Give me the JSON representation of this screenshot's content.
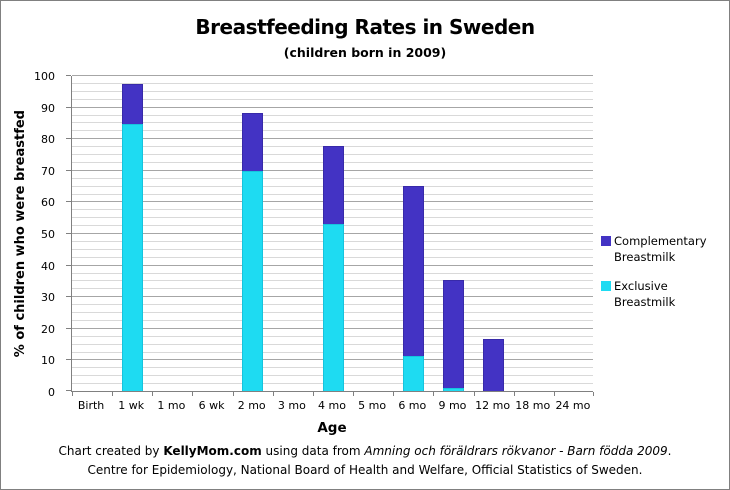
{
  "chart_data": {
    "type": "bar",
    "stacked": true,
    "title": "Breastfeeding Rates in Sweden",
    "subtitle": "(children born in 2009)",
    "xlabel": "Age",
    "ylabel": "% of children who were breastfed",
    "ylim": [
      0,
      100
    ],
    "y_major_step": 10,
    "y_minor_step": 2.5,
    "grid": "horizontal major and minor gridlines",
    "legend_position": "right",
    "categories": [
      "Birth",
      "1 wk",
      "1 mo",
      "6 wk",
      "2 mo",
      "3 mo",
      "4 mo",
      "5 mo",
      "6 mo",
      "9 mo",
      "12 mo",
      "18 mo",
      "24 mo"
    ],
    "series": [
      {
        "name": "Exclusive Breastmilk",
        "color": "#1edbf2",
        "border_color": "#16c4dd",
        "values": [
          0,
          84.5,
          0,
          0,
          69.5,
          0,
          53,
          0,
          11,
          1,
          0,
          0,
          0
        ]
      },
      {
        "name": "Complementary Breastmilk",
        "color": "#4333c4",
        "border_color": "#382aa9",
        "values": [
          0,
          12.5,
          0,
          0,
          18.5,
          0,
          24.5,
          0,
          54,
          34,
          16.5,
          0,
          0
        ]
      }
    ],
    "stacked_totals": [
      0,
      97,
      0,
      0,
      88,
      0,
      77.5,
      0,
      65,
      35,
      16.5,
      0,
      0
    ],
    "legend": [
      {
        "label": "Complementary Breastmilk",
        "color": "#4333c4"
      },
      {
        "label": "Exclusive Breastmilk",
        "color": "#1edbf2"
      }
    ],
    "colors": {
      "axis": "#808080",
      "major_gridline": "#a6a6a6",
      "minor_gridline": "#d9d9d9"
    }
  },
  "footer": {
    "line1_prefix": "Chart created by ",
    "line1_brand": "KellyMom.com",
    "line1_middle": " using data from ",
    "line1_source": "Amning och föräldrars rökvanor - Barn födda 2009",
    "line1_suffix": ".",
    "line2": "Centre for Epidemiology, National Board of Health and Welfare, Official Statistics of Sweden."
  }
}
